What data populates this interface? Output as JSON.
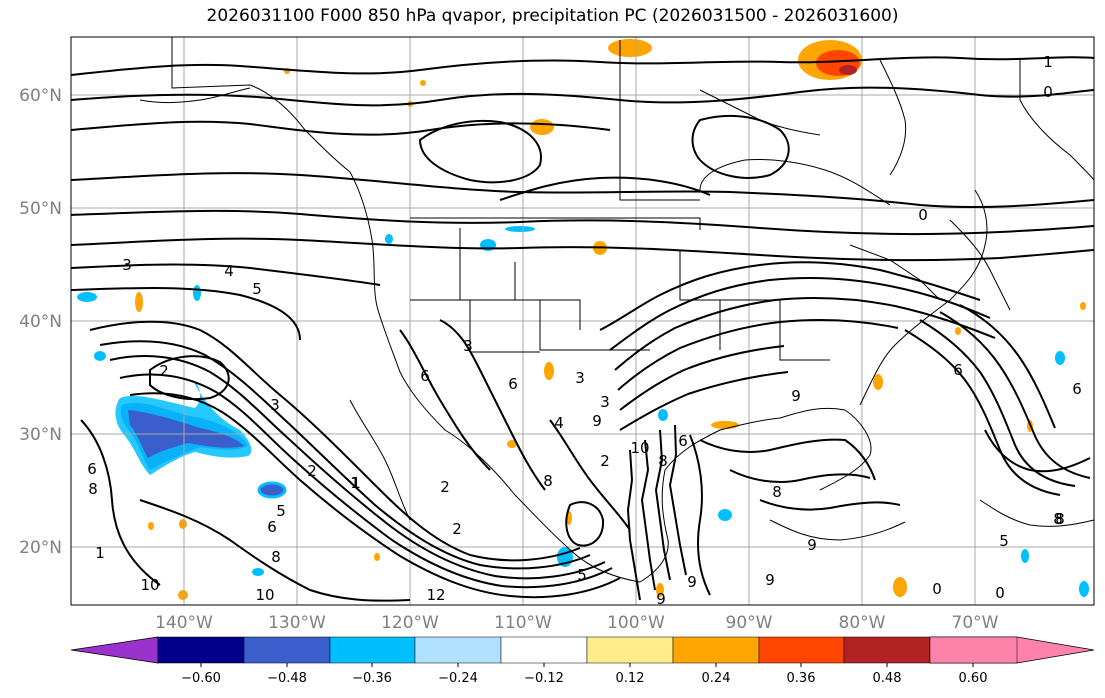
{
  "title": "2026031100 F000 850 hPa qvapor, precipitation PC (2026031500 - 2026031600)",
  "lat_labels": [
    "60°N",
    "50°N",
    "40°N",
    "30°N",
    "20°N"
  ],
  "lon_labels": [
    "140°W",
    "130°W",
    "120°W",
    "110°W",
    "100°W",
    "90°W",
    "80°W",
    "70°W"
  ],
  "colorbar": {
    "ticks": [
      "−0.60",
      "−0.48",
      "−0.36",
      "−0.24",
      "−0.12",
      "0.12",
      "0.24",
      "0.36",
      "0.48",
      "0.60"
    ],
    "colors": [
      "#9a32cd",
      "#00008b",
      "#3a5fcd",
      "#00bfff",
      "#b0e2ff",
      "#ffffff",
      "#ffec8b",
      "#ffa500",
      "#ff4500",
      "#b22222",
      "#ff82ab"
    ]
  },
  "contour_labels": [
    "1",
    "0",
    "3",
    "4",
    "5",
    "2",
    "6",
    "8",
    "10",
    "1",
    "2",
    "3",
    "5",
    "6",
    "8",
    "10",
    "12",
    "0",
    "2",
    "6",
    "8",
    "9",
    "6",
    "8",
    "5",
    "9",
    "0",
    "9",
    "1",
    "6",
    "2",
    "3",
    "5",
    "8",
    "9",
    "6",
    "4",
    "10",
    "3",
    "2",
    "9",
    "0",
    "8",
    "1",
    "3",
    "6",
    "8",
    "9"
  ]
}
